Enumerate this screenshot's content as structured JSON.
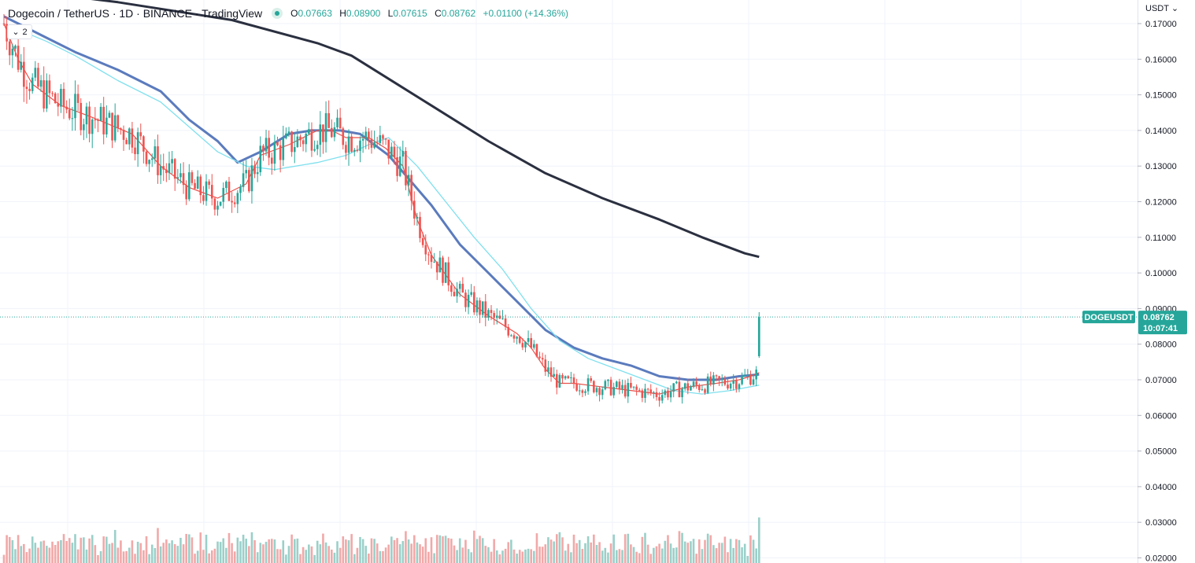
{
  "header": {
    "symbol_title": "Dogecoin / TetherUS · 1D · BINANCE · TradingView",
    "ohlc": {
      "open_label": "O",
      "open": "0.07663",
      "high_label": "H",
      "high": "0.08900",
      "low_label": "L",
      "low": "0.07615",
      "close_label": "C",
      "close": "0.08762",
      "change": "+0.01100 (+14.36%)"
    },
    "indicator_count": "2"
  },
  "price_axis": {
    "currency": "USDT"
  },
  "last_price_label": {
    "symbol": "DOGEUSDT",
    "price": "0.08762",
    "countdown": "10:07:41"
  },
  "colors": {
    "up": "#26a69a",
    "down": "#ef5350",
    "vol_up": "#9ad0c9",
    "vol_down": "#f2a8a8",
    "ma_short": "#e8504a",
    "ma_mid_light": "#7fe0ee",
    "ma_mid": "#5b7bbd",
    "ma_long": "#2b3040"
  },
  "chart_data": {
    "type": "candlestick",
    "symbol": "DOGEUSDT",
    "timeframe": "1D",
    "y_ticks": [
      "0.17000",
      "0.16000",
      "0.15000",
      "0.14000",
      "0.13000",
      "0.12000",
      "0.11000",
      "0.10000",
      "0.09000",
      "0.08000",
      "0.07000",
      "0.06000",
      "0.05000",
      "0.04000",
      "0.03000",
      "0.02000"
    ],
    "ylim": [
      0.02,
      0.1755
    ],
    "last_price": 0.08762,
    "series": [
      {
        "kind": "ma_long",
        "points": [
          [
            0,
            0.18
          ],
          [
            40,
            0.176
          ],
          [
            80,
            0.171
          ],
          [
            110,
            0.1645
          ],
          [
            122,
            0.161
          ],
          [
            150,
            0.147
          ],
          [
            170,
            0.137
          ],
          [
            190,
            0.128
          ],
          [
            210,
            0.121
          ],
          [
            230,
            0.115
          ],
          [
            245,
            0.11
          ],
          [
            260,
            0.1055
          ],
          [
            265,
            0.1045
          ]
        ]
      },
      {
        "kind": "ma_mid",
        "points": [
          [
            0,
            0.172
          ],
          [
            15,
            0.166
          ],
          [
            25,
            0.162
          ],
          [
            40,
            0.157
          ],
          [
            55,
            0.151
          ],
          [
            65,
            0.143
          ],
          [
            75,
            0.137
          ],
          [
            82,
            0.131
          ],
          [
            90,
            0.134
          ],
          [
            100,
            0.139
          ],
          [
            108,
            0.14
          ],
          [
            118,
            0.14
          ],
          [
            125,
            0.139
          ],
          [
            135,
            0.133
          ],
          [
            150,
            0.119
          ],
          [
            160,
            0.108
          ],
          [
            170,
            0.1
          ],
          [
            180,
            0.092
          ],
          [
            190,
            0.084
          ],
          [
            200,
            0.079
          ],
          [
            210,
            0.076
          ],
          [
            220,
            0.074
          ],
          [
            230,
            0.071
          ],
          [
            240,
            0.07
          ],
          [
            250,
            0.07
          ],
          [
            258,
            0.071
          ],
          [
            265,
            0.0715
          ]
        ]
      },
      {
        "kind": "ma_mid_light",
        "points": [
          [
            0,
            0.17
          ],
          [
            15,
            0.165
          ],
          [
            25,
            0.161
          ],
          [
            40,
            0.154
          ],
          [
            55,
            0.148
          ],
          [
            65,
            0.141
          ],
          [
            75,
            0.134
          ],
          [
            85,
            0.13
          ],
          [
            95,
            0.129
          ],
          [
            110,
            0.131
          ],
          [
            120,
            0.133
          ],
          [
            128,
            0.136
          ],
          [
            135,
            0.138
          ],
          [
            145,
            0.13
          ],
          [
            155,
            0.12
          ],
          [
            165,
            0.11
          ],
          [
            175,
            0.101
          ],
          [
            185,
            0.09
          ],
          [
            195,
            0.081
          ],
          [
            205,
            0.076
          ],
          [
            215,
            0.073
          ],
          [
            225,
            0.07
          ],
          [
            235,
            0.067
          ],
          [
            245,
            0.066
          ],
          [
            255,
            0.067
          ],
          [
            265,
            0.0685
          ]
        ]
      },
      {
        "kind": "ma_short",
        "points": [
          [
            0,
            0.17
          ],
          [
            5,
            0.16
          ],
          [
            10,
            0.153
          ],
          [
            20,
            0.147
          ],
          [
            30,
            0.144
          ],
          [
            45,
            0.139
          ],
          [
            55,
            0.13
          ],
          [
            65,
            0.124
          ],
          [
            75,
            0.121
          ],
          [
            85,
            0.125
          ],
          [
            90,
            0.133
          ],
          [
            100,
            0.136
          ],
          [
            110,
            0.14
          ],
          [
            115,
            0.14
          ],
          [
            120,
            0.138
          ],
          [
            128,
            0.138
          ],
          [
            134,
            0.135
          ],
          [
            140,
            0.13
          ],
          [
            145,
            0.115
          ],
          [
            150,
            0.105
          ],
          [
            160,
            0.094
          ],
          [
            170,
            0.088
          ],
          [
            180,
            0.083
          ],
          [
            185,
            0.079
          ],
          [
            190,
            0.073
          ],
          [
            195,
            0.069
          ],
          [
            200,
            0.069
          ],
          [
            210,
            0.068
          ],
          [
            220,
            0.067
          ],
          [
            230,
            0.066
          ],
          [
            240,
            0.068
          ],
          [
            250,
            0.069
          ],
          [
            258,
            0.07
          ],
          [
            262,
            0.071
          ],
          [
            265,
            0.072
          ]
        ]
      }
    ]
  }
}
